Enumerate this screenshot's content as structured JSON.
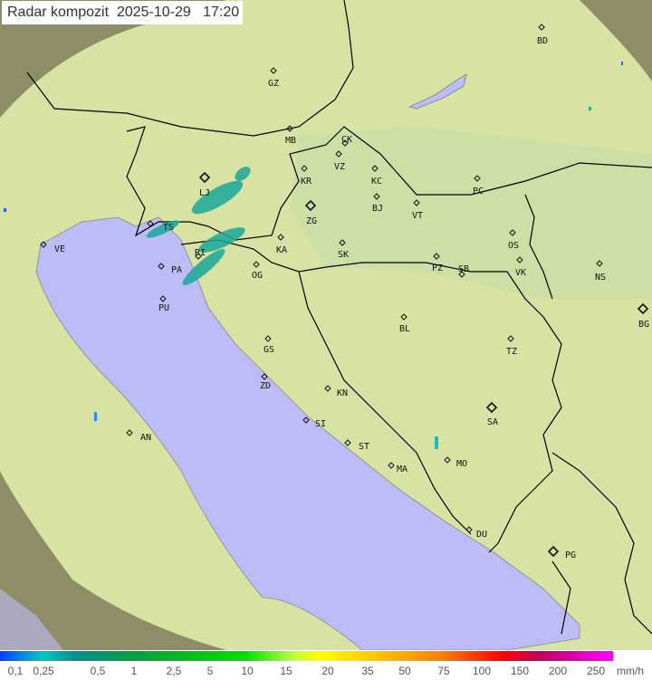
{
  "title": {
    "label": "Radar kompozit",
    "date": "2025-10-29",
    "time": "17:20"
  },
  "legend": {
    "ticks": [
      "0,1",
      "0,25",
      "0,5",
      "1",
      "2,5",
      "5",
      "10",
      "15",
      "20",
      "35",
      "50",
      "75",
      "100",
      "150",
      "200",
      "250"
    ],
    "unit": "mm/h"
  },
  "cities": [
    "BD",
    "GZ",
    "MB",
    "CK",
    "VZ",
    "KR",
    "KC",
    "PC",
    "LJ",
    "BJ",
    "VT",
    "ZG",
    "TS",
    "VE",
    "KA",
    "SK",
    "OS",
    "PZ",
    "SB",
    "VK",
    "NS",
    "RI",
    "PA",
    "OG",
    "PU",
    "BG",
    "BL",
    "TZ",
    "GS",
    "ZD",
    "KN",
    "SA",
    "SI",
    "AN",
    "ST",
    "MO",
    "MA",
    "DU",
    "PG"
  ],
  "colors": {
    "land": "#d8e2a2",
    "sea": "#bcbcf6",
    "out_of_range": "#9a9670",
    "border": "#000000",
    "echo": "#1aa89a"
  }
}
